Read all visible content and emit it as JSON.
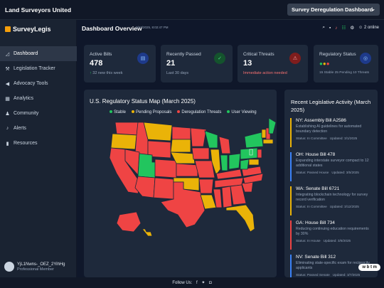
{
  "header": {
    "title": "Land Surveyors United",
    "dashboard_select": "Survey Deregulation Dashboard"
  },
  "sidebar": {
    "brand": "SurveyLegis",
    "items": [
      {
        "label": "Dashboard",
        "icon": "chart-line-icon",
        "active": true
      },
      {
        "label": "Legislation Tracker",
        "icon": "gavel-icon"
      },
      {
        "label": "Advocacy Tools",
        "icon": "megaphone-icon"
      },
      {
        "label": "Analytics",
        "icon": "analytics-icon"
      },
      {
        "label": "Community",
        "icon": "users-icon"
      },
      {
        "label": "Alerts",
        "icon": "bell-icon"
      },
      {
        "label": "Resources",
        "icon": "book-icon"
      }
    ],
    "user": {
      "name": "YjL1Nwns-_OEZ_2YihHg",
      "role": "Professional Member"
    }
  },
  "overview": {
    "title": "Dashboard Overview",
    "timestamp": "3/17/2025, 8:02:47 PM",
    "online": "2 online"
  },
  "stats": [
    {
      "label": "Active Bills",
      "value": "478",
      "sub": "32 new this week",
      "badge_color": "#3b82f6"
    },
    {
      "label": "Recently Passed",
      "value": "21",
      "sub": "Last 30 days",
      "badge_color": "#22c55e"
    },
    {
      "label": "Critical Threats",
      "value": "13",
      "sub": "Immediate action needed",
      "badge_color": "#ef4444"
    },
    {
      "label": "Regulatory Status",
      "sub": "15 Stable 25 Pending 10 Threats",
      "badge_color": "#3b82f6"
    }
  ],
  "map": {
    "title": "U.S. Regulatory Status Map (March 2025)",
    "legend": [
      {
        "label": "Stable",
        "color": "#22c55e"
      },
      {
        "label": "Pending Proposals",
        "color": "#eab308"
      },
      {
        "label": "Deregulation Threats",
        "color": "#ef4444"
      },
      {
        "label": "User Viewing",
        "color": "#22c55e"
      }
    ]
  },
  "activity": {
    "title": "Recent Legislative Activity (March 2025)",
    "items": [
      {
        "bill": "NY: Assembly Bill A2586",
        "desc": "Establishing AI guidelines for automated boundary detection",
        "status": "Status: In Committee",
        "updated": "Updated: 3/1/2025",
        "color": "#eab308"
      },
      {
        "bill": "OH: House Bill 478",
        "desc": "Expanding interstate surveyor compact to 12 additional states",
        "status": "Status: Passed House",
        "updated": "Updated: 3/5/2025",
        "color": "#3b82f6"
      },
      {
        "bill": "WA: Senate Bill 6721",
        "desc": "Integrating blockchain technology for survey record verification",
        "status": "Status: In Committee",
        "updated": "Updated: 3/12/2025",
        "color": "#eab308"
      },
      {
        "bill": "GA: House Bill 734",
        "desc": "Reducing continuing education requirements by 30%",
        "status": "Status: In House",
        "updated": "Updated: 3/8/2025",
        "color": "#ef4444"
      },
      {
        "bill": "NV: Senate Bill 312",
        "desc": "Eliminating state-specific exam for reciprocity applicants",
        "status": "Status: Passed Senate",
        "updated": "Updated: 3/7/2025",
        "color": "#3b82f6"
      }
    ]
  },
  "footer": {
    "label": "Follow Us:"
  },
  "watermark": "w b t m"
}
